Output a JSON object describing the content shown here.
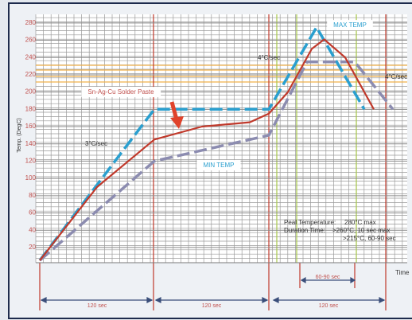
{
  "chart_data": {
    "type": "line",
    "y_label": "Temp. (DegC)",
    "x_label": "Time",
    "xlim": [
      0,
      385
    ],
    "ylim": [
      0,
      290
    ],
    "yticks": [
      20,
      40,
      60,
      80,
      100,
      120,
      140,
      160,
      180,
      200,
      220,
      240,
      260,
      280
    ],
    "grid": true,
    "series": [
      {
        "name": "MAX TEMP",
        "color": "#2a9fcf",
        "style": "dashed",
        "x": [
          0,
          120,
          240,
          290,
          340
        ],
        "y": [
          5,
          180,
          180,
          275,
          180
        ]
      },
      {
        "name": "MIN TEMP",
        "color": "#8c8cb0",
        "style": "dashed",
        "x": [
          0,
          120,
          240,
          280,
          330,
          370
        ],
        "y": [
          5,
          120,
          150,
          235,
          235,
          180
        ]
      },
      {
        "name": "Sn-Ag-Cu Solder Paste",
        "color": "#c0392b",
        "style": "solid",
        "x": [
          0,
          60,
          120,
          170,
          220,
          240,
          260,
          285,
          298,
          320,
          350
        ],
        "y": [
          5,
          90,
          145,
          160,
          165,
          175,
          200,
          250,
          261,
          240,
          180
        ]
      }
    ],
    "annotations": {
      "ramp_1": "3°C/sec",
      "ramp_2": "4°C/sec",
      "ramp_3": "4°C/sec",
      "peak_label": "Peal Temperature:",
      "peak_value": "280°C max",
      "duration_label": "Duration Time:",
      "duration_1": ">260°C, 10 sec max",
      "duration_2": ">215°C, 60-90 sec"
    },
    "intervals": [
      "120 sec",
      "120 sec",
      "120 sec",
      "60-90 sec"
    ]
  }
}
